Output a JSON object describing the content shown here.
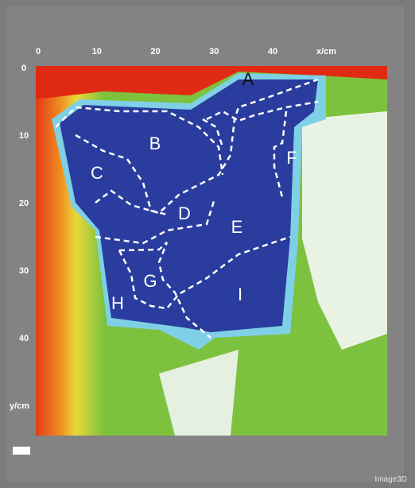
{
  "x_axis": {
    "label": "x/cm",
    "ticks": [
      0,
      10,
      20,
      30,
      40
    ]
  },
  "y_axis": {
    "label": "y/cm",
    "ticks": [
      0,
      10,
      20,
      30,
      40
    ]
  },
  "regions": [
    "A",
    "B",
    "C",
    "D",
    "E",
    "F",
    "G",
    "H",
    "I"
  ],
  "watermark": "Image3D"
}
